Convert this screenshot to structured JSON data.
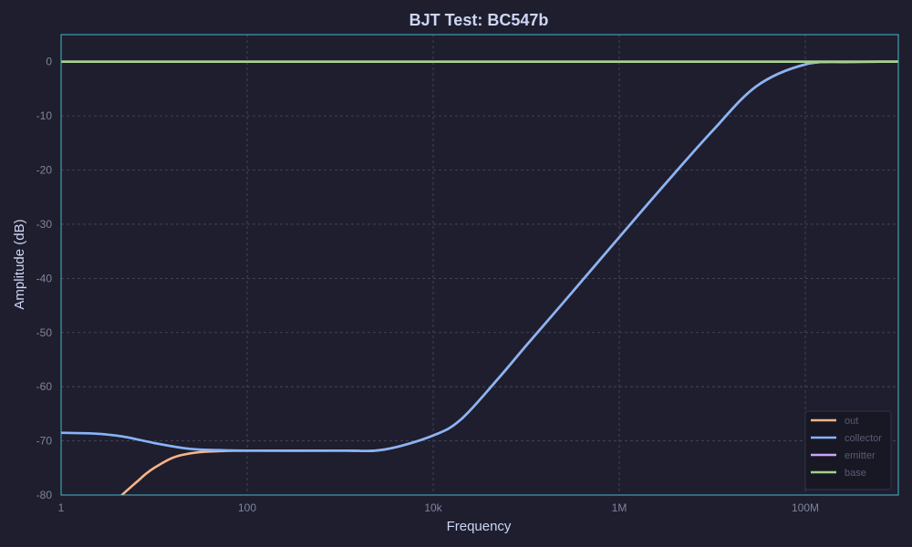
{
  "chart_data": {
    "type": "line",
    "title": "BJT Test: BC547b",
    "xlabel": "Frequency",
    "ylabel": "Amplitude (dB)",
    "xscale": "log",
    "xlim": [
      1,
      1000000000
    ],
    "ylim": [
      -80,
      5
    ],
    "xticks": [
      {
        "value": 1,
        "label": "1"
      },
      {
        "value": 100,
        "label": "100"
      },
      {
        "value": 10000,
        "label": "10k"
      },
      {
        "value": 1000000,
        "label": "1M"
      },
      {
        "value": 100000000,
        "label": "100M"
      }
    ],
    "yticks": [
      0,
      -10,
      -20,
      -30,
      -40,
      -50,
      -60,
      -70,
      -80
    ],
    "grid": true,
    "legend_position": "bottom-right",
    "series": [
      {
        "name": "out",
        "color": "#fab387",
        "x": [
          4.5,
          5,
          6,
          7,
          8,
          10,
          15,
          20,
          30,
          50,
          100,
          1000,
          3000,
          10000,
          20000,
          50000,
          100000,
          300000,
          1000000,
          3000000,
          10000000,
          30000000,
          100000000,
          300000000,
          1000000000
        ],
        "y": [
          -80,
          -79.3,
          -78.1,
          -77.1,
          -76.2,
          -75.0,
          -73.3,
          -72.6,
          -72.1,
          -71.9,
          -71.8,
          -71.8,
          -71.6,
          -69.0,
          -66.0,
          -58.5,
          -52.4,
          -42.9,
          -32.4,
          -22.9,
          -12.8,
          -4.5,
          -0.5,
          -0.05,
          0
        ]
      },
      {
        "name": "collector",
        "color": "#89b4fa",
        "x": [
          1,
          2,
          3,
          5,
          10,
          20,
          30,
          50,
          100,
          1000,
          3000,
          10000,
          20000,
          50000,
          100000,
          300000,
          1000000,
          3000000,
          10000000,
          30000000,
          100000000,
          300000000,
          1000000000
        ],
        "y": [
          -68.5,
          -68.6,
          -68.8,
          -69.3,
          -70.4,
          -71.3,
          -71.6,
          -71.7,
          -71.8,
          -71.8,
          -71.6,
          -69.0,
          -66.0,
          -58.5,
          -52.4,
          -42.9,
          -32.4,
          -22.9,
          -12.8,
          -4.5,
          -0.5,
          -0.05,
          0
        ]
      },
      {
        "name": "emitter",
        "color": "#cba6f7",
        "x": [
          1,
          1000000000
        ],
        "y": [
          0,
          0
        ]
      },
      {
        "name": "base",
        "color": "#a6d189",
        "x": [
          1,
          1000000000
        ],
        "y": [
          0,
          0
        ]
      }
    ]
  }
}
